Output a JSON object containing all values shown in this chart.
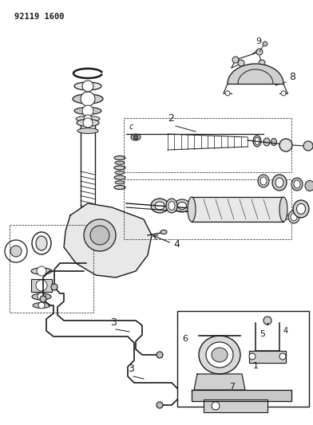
{
  "title": "92119 1600",
  "bg_color": "#ffffff",
  "line_color": "#1a1a1a",
  "fig_width": 3.92,
  "fig_height": 5.33,
  "dpi": 100
}
